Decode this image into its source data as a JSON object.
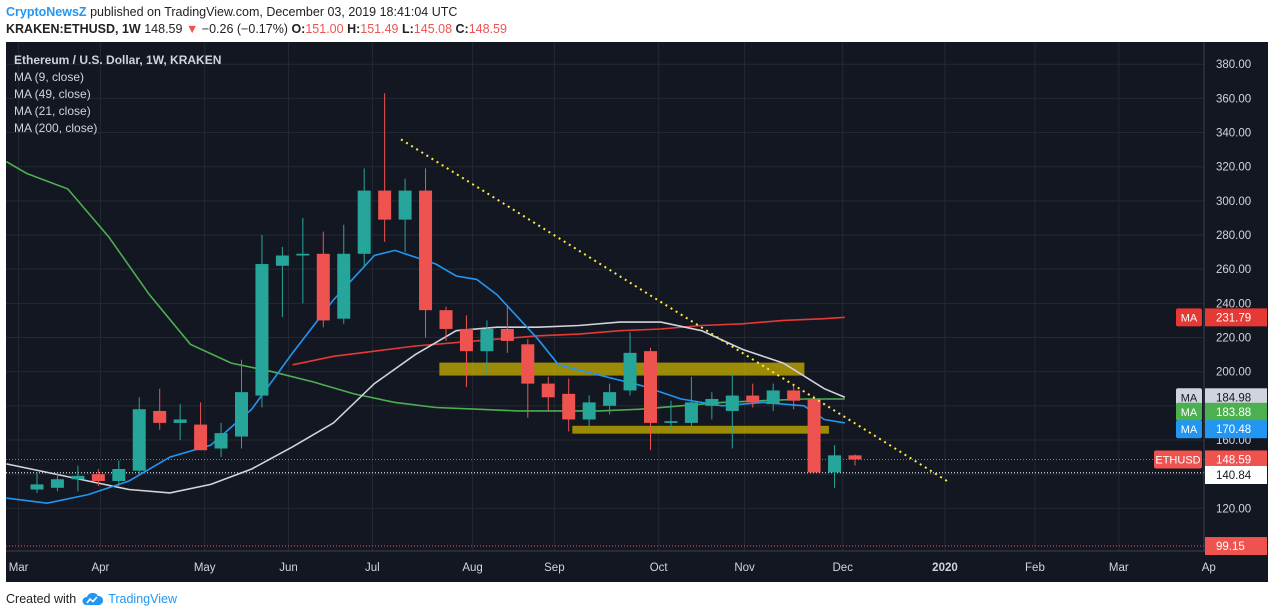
{
  "header": {
    "author": "CryptoNewsZ",
    "published_text": "published on TradingView.com, December 03, 2019 18:41:04 UTC",
    "symbol": "KRAKEN:ETHUSD, 1W",
    "last_price": "148.59",
    "change": "−0.26 (−0.17%)",
    "open_label": "O:",
    "open": "151.00",
    "high_label": "H:",
    "high": "151.49",
    "low_label": "L:",
    "low": "145.08",
    "close_label": "C:",
    "close": "148.59"
  },
  "legend": {
    "title": "Ethereum / U.S. Dollar, 1W, KRAKEN",
    "ma9": "MA (9, close)",
    "ma49": "MA (49, close)",
    "ma21": "MA (21, close)",
    "ma200": "MA (200, close)"
  },
  "footer": {
    "created_with": "Created with",
    "brand": "TradingView"
  },
  "colors": {
    "background": "#131722",
    "grid": "#242832",
    "up": "#26a69a",
    "down": "#ef5350",
    "ma_white": "#d1d4dc",
    "ma_green": "#4caf50",
    "ma_blue": "#2196f3",
    "ma_red": "#e53935",
    "trend": "#ffeb3b",
    "zone": "#c9b200"
  },
  "chart_data": {
    "type": "candlestick",
    "title": "Ethereum / U.S. Dollar, 1W, KRAKEN",
    "ylim": [
      95,
      393
    ],
    "y_ticks": [
      120,
      140,
      160,
      180,
      200,
      220,
      240,
      260,
      280,
      300,
      320,
      340,
      360,
      380
    ],
    "y_tick_labels": [
      "120.00",
      "140.00",
      "160.00",
      "180.00",
      "200.00",
      "220.00",
      "240.00",
      "260.00",
      "280.00",
      "300.00",
      "320.00",
      "340.00",
      "360.00",
      "380.00"
    ],
    "x_labels": [
      {
        "label": "Mar",
        "w": -0.9
      },
      {
        "label": "Apr",
        "w": 3.1
      },
      {
        "label": "May",
        "w": 8.2
      },
      {
        "label": "Jun",
        "w": 12.3
      },
      {
        "label": "Jul",
        "w": 16.4
      },
      {
        "label": "Aug",
        "w": 21.3
      },
      {
        "label": "Sep",
        "w": 25.3
      },
      {
        "label": "Oct",
        "w": 30.4
      },
      {
        "label": "Nov",
        "w": 34.6
      },
      {
        "label": "Dec",
        "w": 39.4
      },
      {
        "label": "2020",
        "w": 44.4
      },
      {
        "label": "Feb",
        "w": 48.8
      },
      {
        "label": "Mar",
        "w": 52.9
      },
      {
        "label": "Ap",
        "w": 57.3
      }
    ],
    "candles": [
      {
        "o": 131,
        "h": 141,
        "l": 129,
        "c": 134
      },
      {
        "o": 132,
        "h": 140,
        "l": 130,
        "c": 137
      },
      {
        "o": 137,
        "h": 145,
        "l": 130,
        "c": 139
      },
      {
        "o": 140,
        "h": 143,
        "l": 133,
        "c": 136
      },
      {
        "o": 136,
        "h": 148,
        "l": 133,
        "c": 143
      },
      {
        "o": 142,
        "h": 185,
        "l": 140,
        "c": 178
      },
      {
        "o": 177,
        "h": 190,
        "l": 166,
        "c": 170
      },
      {
        "o": 170,
        "h": 181,
        "l": 160,
        "c": 172
      },
      {
        "o": 169,
        "h": 182,
        "l": 155,
        "c": 154
      },
      {
        "o": 155,
        "h": 170,
        "l": 150,
        "c": 164
      },
      {
        "o": 162,
        "h": 207,
        "l": 155,
        "c": 188
      },
      {
        "o": 186,
        "h": 280,
        "l": 179,
        "c": 263
      },
      {
        "o": 262,
        "h": 273,
        "l": 232,
        "c": 268
      },
      {
        "o": 268,
        "h": 290,
        "l": 240,
        "c": 269
      },
      {
        "o": 269,
        "h": 282,
        "l": 226,
        "c": 230
      },
      {
        "o": 231,
        "h": 286,
        "l": 228,
        "c": 269
      },
      {
        "o": 269,
        "h": 319,
        "l": 261,
        "c": 306
      },
      {
        "o": 306,
        "h": 363,
        "l": 276,
        "c": 289
      },
      {
        "o": 289,
        "h": 313,
        "l": 270,
        "c": 306
      },
      {
        "o": 306,
        "h": 319,
        "l": 220,
        "c": 236
      },
      {
        "o": 236,
        "h": 238,
        "l": 218,
        "c": 225
      },
      {
        "o": 225,
        "h": 233,
        "l": 191,
        "c": 212
      },
      {
        "o": 212,
        "h": 230,
        "l": 198,
        "c": 225
      },
      {
        "o": 225,
        "h": 239,
        "l": 211,
        "c": 218
      },
      {
        "o": 216,
        "h": 219,
        "l": 173,
        "c": 193
      },
      {
        "o": 193,
        "h": 197,
        "l": 177,
        "c": 185
      },
      {
        "o": 187,
        "h": 196,
        "l": 165,
        "c": 172
      },
      {
        "o": 172,
        "h": 186,
        "l": 168,
        "c": 182
      },
      {
        "o": 180,
        "h": 193,
        "l": 175,
        "c": 188
      },
      {
        "o": 189,
        "h": 223,
        "l": 186,
        "c": 211
      },
      {
        "o": 212,
        "h": 214,
        "l": 154,
        "c": 170
      },
      {
        "o": 170,
        "h": 183,
        "l": 166,
        "c": 171
      },
      {
        "o": 170,
        "h": 197,
        "l": 164,
        "c": 182
      },
      {
        "o": 180,
        "h": 188,
        "l": 172,
        "c": 184
      },
      {
        "o": 177,
        "h": 199,
        "l": 155,
        "c": 186
      },
      {
        "o": 186,
        "h": 193,
        "l": 179,
        "c": 182
      },
      {
        "o": 181,
        "h": 193,
        "l": 177,
        "c": 189
      },
      {
        "o": 189,
        "h": 192,
        "l": 178,
        "c": 183
      },
      {
        "o": 184,
        "h": 186,
        "l": 141,
        "c": 141
      },
      {
        "o": 141,
        "h": 157,
        "l": 132,
        "c": 151
      },
      {
        "o": 151,
        "h": 151.49,
        "l": 145.08,
        "c": 148.59
      }
    ],
    "ma_white": [
      [
        -1.5,
        146
      ],
      [
        0.5,
        141
      ],
      [
        2.5,
        136
      ],
      [
        4.5,
        131
      ],
      [
        6.5,
        129
      ],
      [
        8.5,
        134
      ],
      [
        10.5,
        143
      ],
      [
        12.5,
        156
      ],
      [
        14.5,
        170
      ],
      [
        16.5,
        193
      ],
      [
        18.5,
        210
      ],
      [
        20.5,
        224
      ],
      [
        22.5,
        226
      ],
      [
        24.5,
        226
      ],
      [
        26.5,
        227
      ],
      [
        28.5,
        229
      ],
      [
        30.5,
        229
      ],
      [
        32.5,
        224
      ],
      [
        34.5,
        213
      ],
      [
        36.5,
        205
      ],
      [
        38.5,
        190
      ],
      [
        39.5,
        185
      ]
    ],
    "ma_green": [
      [
        -1.5,
        323
      ],
      [
        -0.5,
        316
      ],
      [
        1.5,
        307
      ],
      [
        3.5,
        279
      ],
      [
        5.5,
        245
      ],
      [
        7.5,
        216
      ],
      [
        9.5,
        205
      ],
      [
        11.5,
        200
      ],
      [
        13.5,
        194
      ],
      [
        15.5,
        187
      ],
      [
        17.5,
        182
      ],
      [
        19.5,
        179
      ],
      [
        21.5,
        178
      ],
      [
        23.5,
        177
      ],
      [
        25.5,
        177
      ],
      [
        27.5,
        177
      ],
      [
        29.5,
        178
      ],
      [
        31.5,
        180
      ],
      [
        33.5,
        182
      ],
      [
        35.5,
        183
      ],
      [
        37.5,
        184
      ],
      [
        39.5,
        184
      ]
    ],
    "ma_blue": [
      [
        -1.5,
        126
      ],
      [
        0.5,
        123
      ],
      [
        2.5,
        128
      ],
      [
        4.5,
        136
      ],
      [
        6.5,
        150
      ],
      [
        8.5,
        157
      ],
      [
        10.5,
        178
      ],
      [
        12.5,
        211
      ],
      [
        14.5,
        242
      ],
      [
        16.5,
        268
      ],
      [
        17.5,
        271
      ],
      [
        19.5,
        263
      ],
      [
        20.5,
        256
      ],
      [
        21.5,
        254
      ],
      [
        22.5,
        245
      ],
      [
        24.5,
        219
      ],
      [
        25.5,
        204
      ],
      [
        27.5,
        198
      ],
      [
        29.5,
        192
      ],
      [
        31.5,
        184
      ],
      [
        33.5,
        180
      ],
      [
        35.5,
        182
      ],
      [
        37.5,
        180
      ],
      [
        38.5,
        172
      ],
      [
        39.5,
        170
      ]
    ],
    "ma_red": [
      [
        12.5,
        204
      ],
      [
        14.5,
        209
      ],
      [
        16.5,
        212
      ],
      [
        18.5,
        215
      ],
      [
        20.5,
        217
      ],
      [
        22.5,
        219
      ],
      [
        24.5,
        221
      ],
      [
        26.5,
        222
      ],
      [
        28.5,
        224
      ],
      [
        30.5,
        225
      ],
      [
        32.5,
        227
      ],
      [
        34.5,
        228
      ],
      [
        36.5,
        230
      ],
      [
        38.5,
        231
      ],
      [
        39.5,
        231.8
      ]
    ],
    "trendline": {
      "start": [
        17.8,
        336
      ],
      "end": [
        44.5,
        136
      ]
    },
    "zones": [
      {
        "w_start": 19.7,
        "w_end": 37.5,
        "y_low": 198,
        "y_high": 205
      },
      {
        "w_start": 26.2,
        "w_end": 38.7,
        "y_low": 164,
        "y_high": 168
      }
    ],
    "hlines": [
      {
        "value": 148.59,
        "color": "#ef5350",
        "style": "dotted"
      },
      {
        "value": 140.84,
        "color": "#ffffff",
        "style": "dotted"
      },
      {
        "value": 97.9,
        "color": "#ef5350",
        "style": "dotted"
      }
    ],
    "price_labels": [
      {
        "y": 231.79,
        "text": "231.79",
        "tag": "MA",
        "bg": "#e53935",
        "fg": "#ffffff"
      },
      {
        "y": 184.98,
        "text": "184.98",
        "tag": "MA",
        "bg": "#d1d4dc",
        "fg": "#131722"
      },
      {
        "y": 176.5,
        "text": "183.88",
        "tag": "MA",
        "bg": "#4caf50",
        "fg": "#ffffff"
      },
      {
        "y": 166.3,
        "text": "170.48",
        "tag": "MA",
        "bg": "#2196f3",
        "fg": "#ffffff"
      },
      {
        "y": 148.59,
        "text": "148.59",
        "tag": "ETHUSD",
        "bg": "#ef5350",
        "fg": "#ffffff"
      },
      {
        "y": 139.5,
        "text": "140.84",
        "tag": "",
        "bg": "#ffffff",
        "fg": "#131722"
      },
      {
        "y": 97.9,
        "text": "99.15",
        "tag": "",
        "bg": "#ef5350",
        "fg": "#ffffff"
      }
    ]
  }
}
